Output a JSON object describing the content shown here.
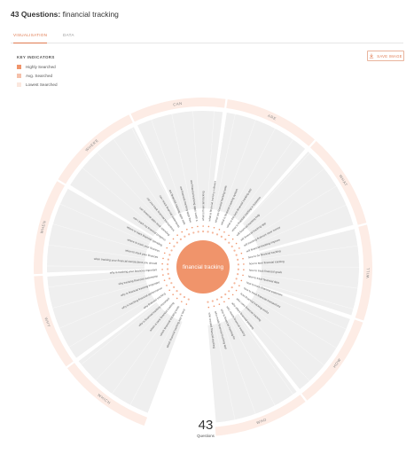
{
  "header": {
    "count_label": "43 Questions:",
    "query": "financial tracking"
  },
  "tabs": [
    {
      "label": "VISUALISATION",
      "active": true
    },
    {
      "label": "DATA",
      "active": false
    }
  ],
  "key": {
    "title": "KEY INDICATORS",
    "items": [
      {
        "label": "Highly Searched",
        "color": "#f0946b"
      },
      {
        "label": "Avg. Searched",
        "color": "#f5c0aa"
      },
      {
        "label": "Lowest Searched",
        "color": "#fbe7de"
      }
    ]
  },
  "save_button": {
    "label": "SAVE IMAGE"
  },
  "wheel": {
    "center_label": "financial tracking",
    "accent": "#f0946b",
    "ring_color": "#fdece5",
    "sector_color": "#efefef",
    "categories": [
      "WHICH",
      "WHY",
      "WHEN",
      "WHERE",
      "CAN",
      "ARE",
      "WHAT",
      "WILL",
      "HOW",
      "WHO"
    ],
    "questions": [
      "which financial tracking app is best",
      "which financial tracking tools",
      "which is best financial tracking",
      "why is financial tracking important",
      "why financial tracking",
      "why is tracking financial performance",
      "why is financial tracking important",
      "why tracking financial statements",
      "why is tracking your finances important",
      "when tracking your financial transactions you should",
      "when to track your finances",
      "where to track your finances",
      "where to track financial spending",
      "can i track my financial progress",
      "can financial apps track spending",
      "can you track financial transactions",
      "can i track financial statements",
      "are financial tracking apps safe",
      "are financial tracking apps free",
      "are financial tracking apps worth it",
      "what is financial tracking",
      "what is financial tracking software",
      "what are financial tracking tools",
      "what is financial tracking system",
      "what is the best financial tracking app",
      "what is financial tracking in business",
      "will financial tracking help",
      "will financial tracking app",
      "will tracking finances save money",
      "will financial tracking improve",
      "how to do financial tracking",
      "how to start financial tracking",
      "how to track financial goals",
      "how to track financial data",
      "how to track financial expenses",
      "how to track financial transactions",
      "how financial tracking works",
      "who uses financial tracking",
      "who offers financial tracking",
      "who needs financial tracking",
      "who is financial tracking for",
      "who made financial tracking app",
      "who created financial tracking"
    ],
    "total": "43",
    "total_label": "Questions"
  }
}
